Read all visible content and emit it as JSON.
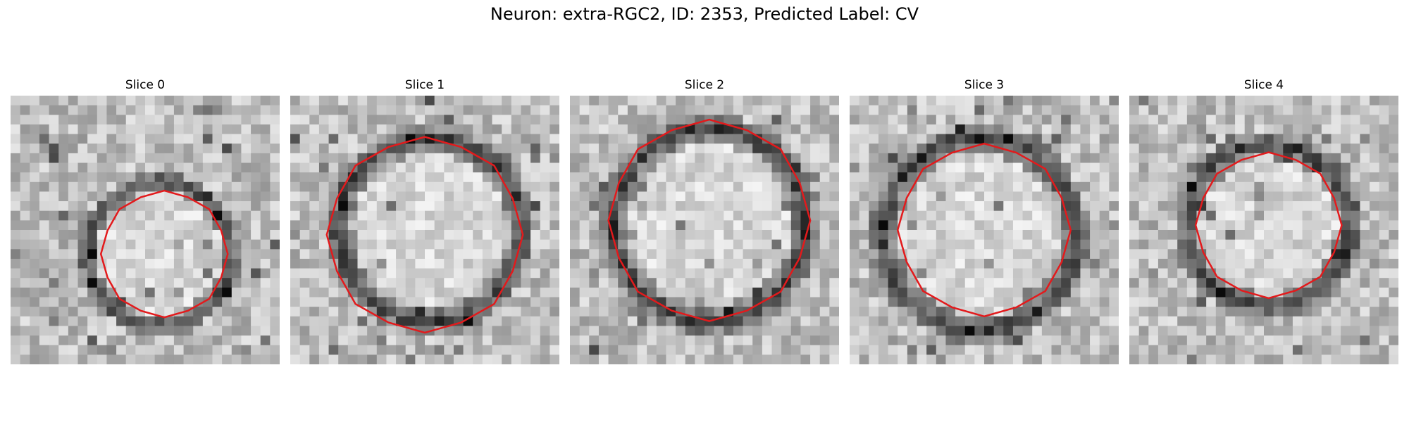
{
  "figure": {
    "title": "Neuron: extra-RGC2, ID: 2353, Predicted Label: CV"
  },
  "slices": [
    {
      "label": "Slice 0"
    },
    {
      "label": "Slice 1"
    },
    {
      "label": "Slice 2"
    },
    {
      "label": "Slice 3"
    },
    {
      "label": "Slice 4"
    }
  ],
  "contour_color": "#e31a1c"
}
